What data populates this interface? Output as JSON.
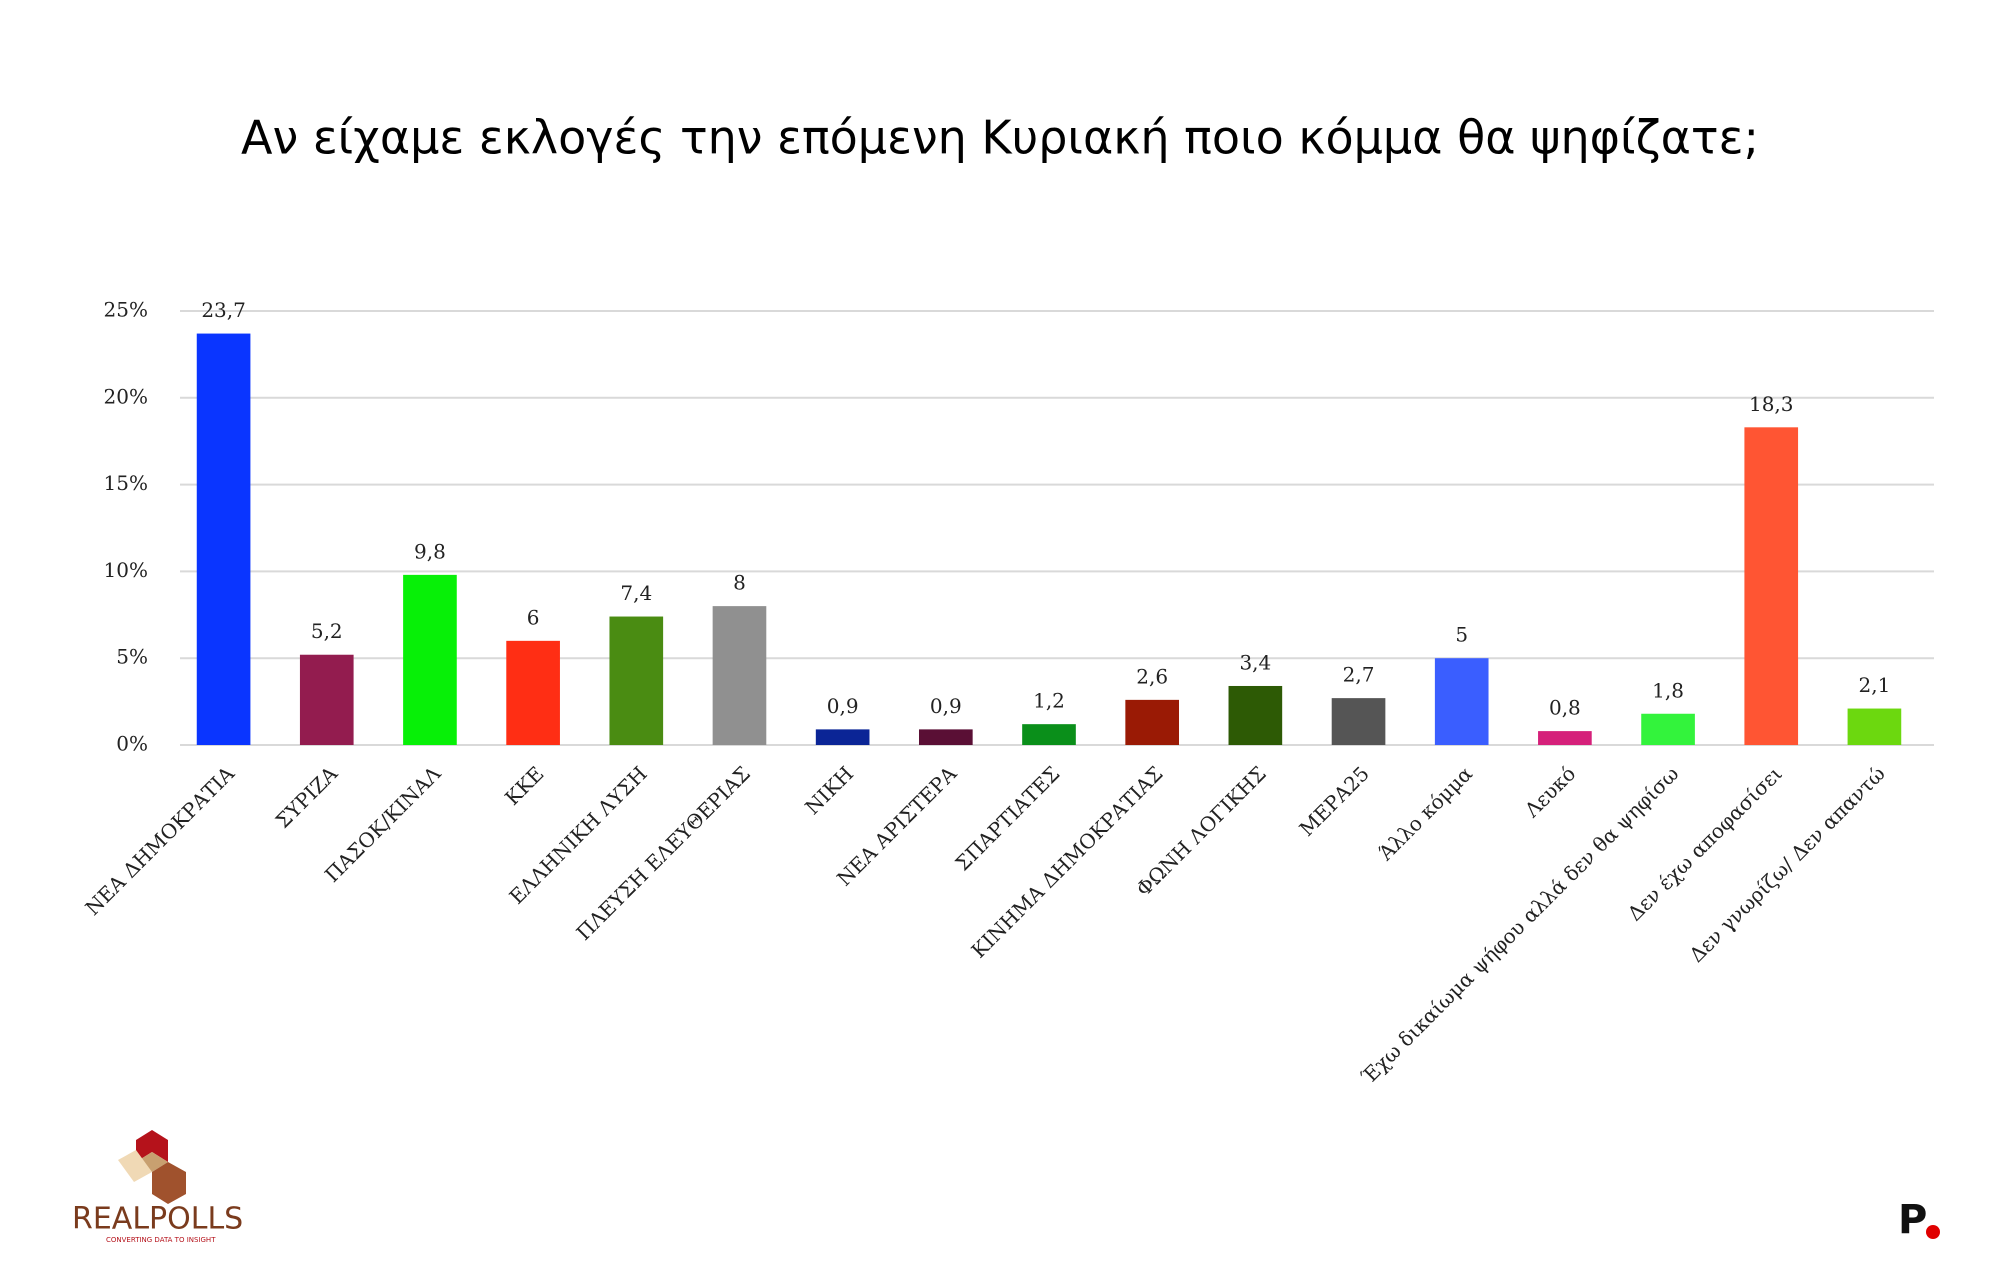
{
  "chart_data": {
    "type": "bar",
    "title": "Αν είχαμε εκλογές την επόμενη Κυριακή ποιο κόμμα θα ψηφίζατε;",
    "categories": [
      "ΝΕΑ ΔΗΜΟΚΡΑΤΙΑ",
      "ΣΥΡΙΖΑ",
      "ΠΑΣΟΚ/ΚΙΝΑΛ",
      "ΚΚΕ",
      "ΕΛΛΗΝΙΚΗ ΛΥΣΗ",
      "ΠΛΕΥΣΗ ΕΛΕΥΘΕΡΙΑΣ",
      "ΝΙΚΗ",
      "ΝΕΑ ΑΡΙΣΤΕΡΑ",
      "ΣΠΑΡΤΙΑΤΕΣ",
      "ΚΙΝΗΜΑ ΔΗΜΟΚΡΑΤΙΑΣ",
      "ΦΩΝΗ ΛΟΓΙΚΗΣ",
      "ΜΕΡΑ25",
      "Άλλο κόμμα",
      "Λευκό",
      "Έχω δικαίωμα ψήφου αλλά δεν θα ψηφίσω",
      "Δεν έχω αποφασίσει",
      "Δεν γνωρίζω/ Δεν απαντώ"
    ],
    "values": [
      23.7,
      5.2,
      9.8,
      6,
      7.4,
      8,
      0.9,
      0.9,
      1.2,
      2.6,
      3.4,
      2.7,
      5,
      0.8,
      1.8,
      18.3,
      2.1
    ],
    "value_labels": [
      "23,7",
      "5,2",
      "9,8",
      "6",
      "7,4",
      "8",
      "0,9",
      "0,9",
      "1,2",
      "2,6",
      "3,4",
      "2,7",
      "5",
      "0,8",
      "1,8",
      "18,3",
      "2,1"
    ],
    "colors": [
      "#0a35ff",
      "#931c4f",
      "#07f007",
      "#ff2e14",
      "#4a8c12",
      "#909090",
      "#0b2596",
      "#5a0f35",
      "#0a8f1a",
      "#9a1a05",
      "#2d5a05",
      "#555555",
      "#3a5eff",
      "#d5207a",
      "#33f33c",
      "#ff5533",
      "#6cd80f"
    ],
    "ylim": [
      0,
      25
    ],
    "yticks": [
      {
        "value": 0,
        "label": "0%"
      },
      {
        "value": 5,
        "label": "5%"
      },
      {
        "value": 10,
        "label": "10%"
      },
      {
        "value": 15,
        "label": "15%"
      },
      {
        "value": 20,
        "label": "20%"
      },
      {
        "value": 25,
        "label": "25%"
      }
    ],
    "grid": true
  },
  "branding": {
    "left_logo": "REALPOLLS",
    "left_tagline": "CONVERTING DATA TO INSIGHT",
    "right_logo": "P"
  }
}
